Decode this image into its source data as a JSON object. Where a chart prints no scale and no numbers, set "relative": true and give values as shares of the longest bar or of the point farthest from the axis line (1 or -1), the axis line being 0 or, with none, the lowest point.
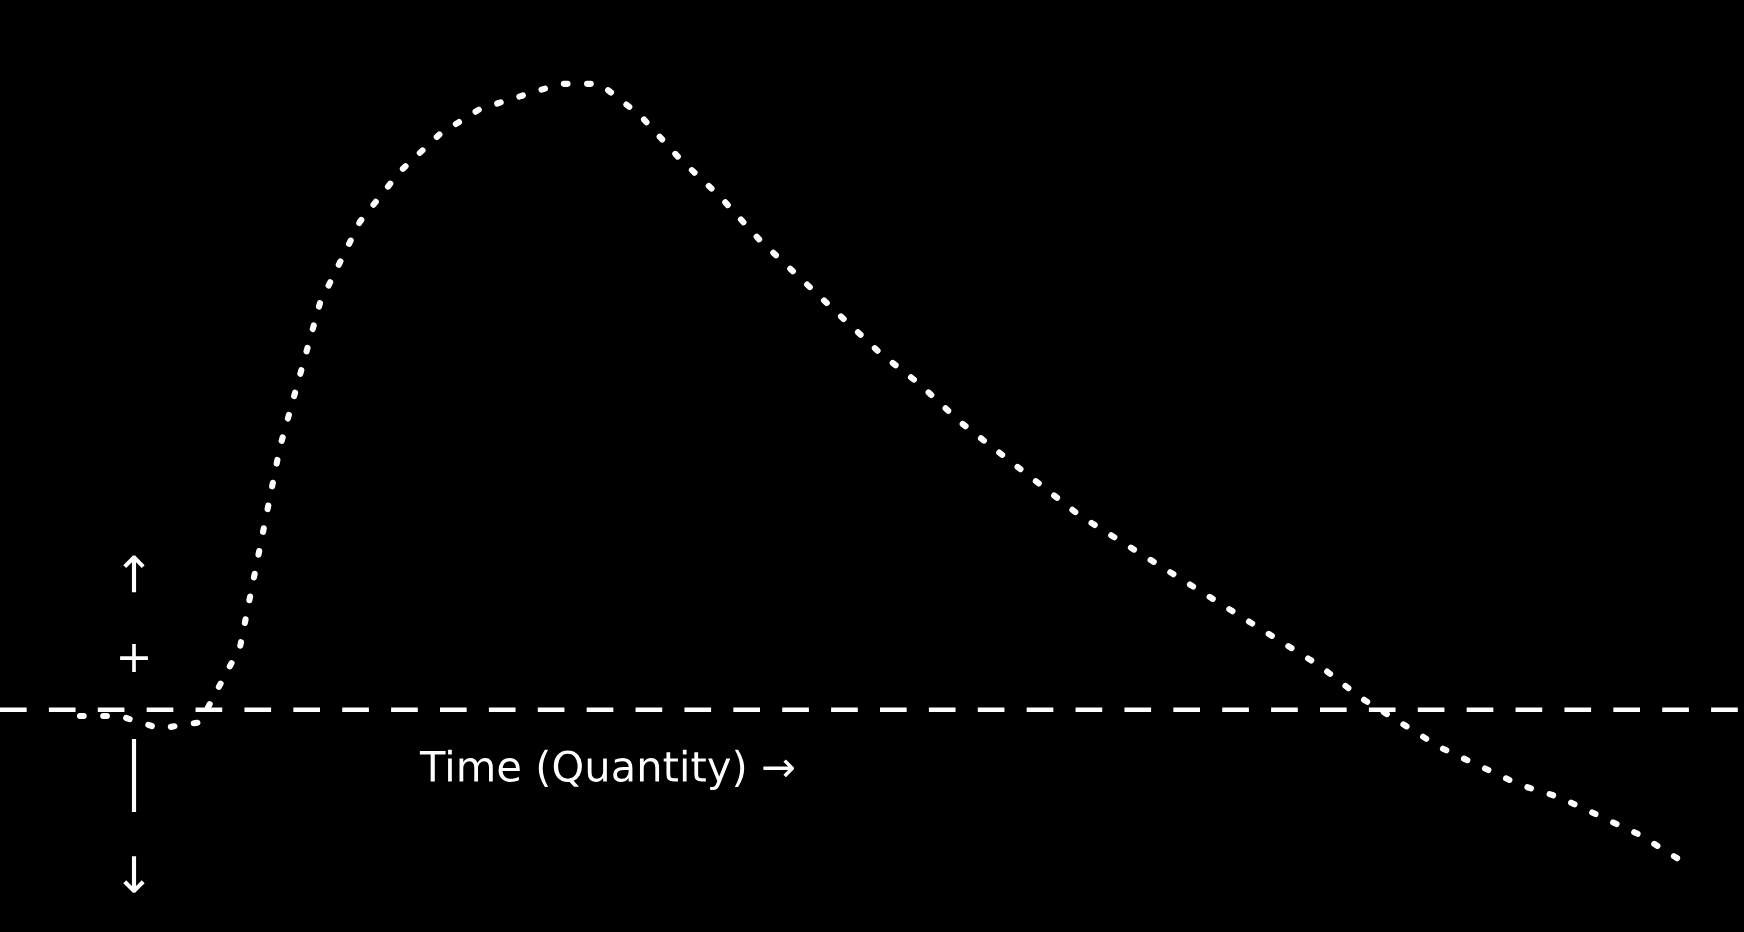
{
  "chart_data": {
    "type": "line",
    "relative": true,
    "categories": [
      null,
      null,
      null,
      null,
      null,
      null,
      null,
      null,
      null,
      null,
      null,
      null,
      null,
      null,
      null,
      null,
      null,
      null,
      null,
      null,
      null,
      null,
      null,
      null,
      null,
      null,
      null,
      null,
      null,
      null,
      null,
      null,
      null,
      null,
      null,
      null,
      null,
      null,
      null,
      null,
      null
    ],
    "series": [
      {
        "color": "#ffffff",
        "values": [
          -0.01,
          -0.01,
          -0.03,
          -0.02,
          0.1,
          0.42,
          0.65,
          0.78,
          0.86,
          0.92,
          0.96,
          0.98,
          1.0,
          1.0,
          0.95,
          0.88,
          0.82,
          0.75,
          0.69,
          0.63,
          0.57,
          0.52,
          0.46,
          0.41,
          0.36,
          0.31,
          0.27,
          0.23,
          0.19,
          0.15,
          0.11,
          0.07,
          0.02,
          -0.02,
          -0.06,
          -0.09,
          -0.12,
          -0.14,
          -0.17,
          -0.2,
          -0.24
        ]
      }
    ],
    "line_style": "dotted",
    "marker": "none",
    "legend": false,
    "ref_lines": [
      {
        "axis": "y",
        "value": 0,
        "color": "#ffffff",
        "line_style": "dashed"
      }
    ],
    "annotations": [
      "Time (Quantity) →",
      "+",
      "↑",
      "↓"
    ]
  }
}
